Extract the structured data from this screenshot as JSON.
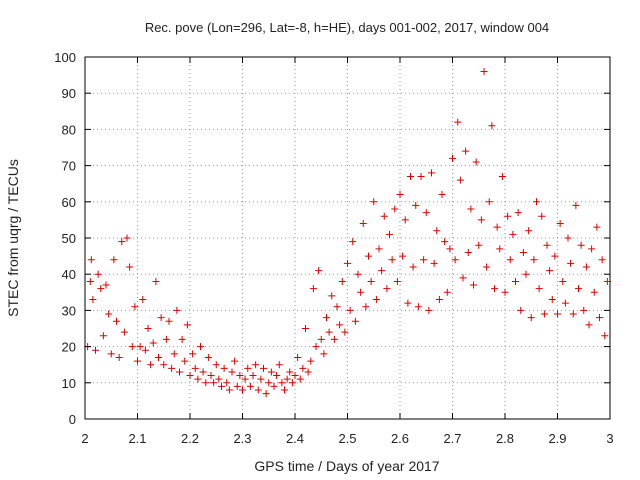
{
  "chart_data": {
    "type": "scatter",
    "title": "Rec. pove (Lon=296, Lat=-8, h=HE), days 001-002, 2017, window 004",
    "xlabel": "GPS time / Days of year 2017",
    "ylabel": "STEC from uqrg / TECUs",
    "xlim": [
      2,
      3
    ],
    "ylim": [
      0,
      100
    ],
    "xticks": [
      2,
      2.1,
      2.2,
      2.3,
      2.4,
      2.5,
      2.6,
      2.7,
      2.8,
      2.9,
      3
    ],
    "xtick_labels": [
      "2",
      "2.1",
      "2.2",
      "2.3",
      "2.4",
      "2.5",
      "2.6",
      "2.7",
      "2.8",
      "2.9",
      "3"
    ],
    "yticks": [
      0,
      10,
      20,
      30,
      40,
      50,
      60,
      70,
      80,
      90,
      100
    ],
    "ytick_labels": [
      "0",
      "10",
      "20",
      "30",
      "40",
      "50",
      "60",
      "70",
      "80",
      "90",
      "100"
    ],
    "grid": true,
    "marker": "+",
    "color": "#dd0000",
    "series": [
      {
        "name": "STEC",
        "points": [
          [
            2.005,
            20
          ],
          [
            2.01,
            38
          ],
          [
            2.012,
            44
          ],
          [
            2.015,
            33
          ],
          [
            2.02,
            19
          ],
          [
            2.025,
            40
          ],
          [
            2.03,
            36
          ],
          [
            2.035,
            23
          ],
          [
            2.04,
            37
          ],
          [
            2.045,
            29
          ],
          [
            2.05,
            18
          ],
          [
            2.055,
            44
          ],
          [
            2.06,
            27
          ],
          [
            2.065,
            17
          ],
          [
            2.07,
            49
          ],
          [
            2.075,
            24
          ],
          [
            2.08,
            50
          ],
          [
            2.085,
            42
          ],
          [
            2.09,
            20
          ],
          [
            2.095,
            31
          ],
          [
            2.1,
            16
          ],
          [
            2.105,
            20
          ],
          [
            2.11,
            33
          ],
          [
            2.115,
            19
          ],
          [
            2.12,
            25
          ],
          [
            2.125,
            15
          ],
          [
            2.13,
            21
          ],
          [
            2.135,
            38
          ],
          [
            2.14,
            17
          ],
          [
            2.145,
            28
          ],
          [
            2.15,
            15
          ],
          [
            2.155,
            22
          ],
          [
            2.16,
            27
          ],
          [
            2.165,
            14
          ],
          [
            2.17,
            18
          ],
          [
            2.175,
            30
          ],
          [
            2.18,
            13
          ],
          [
            2.185,
            22
          ],
          [
            2.19,
            16
          ],
          [
            2.195,
            26
          ],
          [
            2.2,
            12
          ],
          [
            2.205,
            18
          ],
          [
            2.21,
            14
          ],
          [
            2.215,
            11
          ],
          [
            2.22,
            20
          ],
          [
            2.225,
            13
          ],
          [
            2.23,
            10
          ],
          [
            2.235,
            17
          ],
          [
            2.24,
            12
          ],
          [
            2.245,
            10
          ],
          [
            2.25,
            15
          ],
          [
            2.255,
            11
          ],
          [
            2.26,
            9
          ],
          [
            2.265,
            14
          ],
          [
            2.27,
            10
          ],
          [
            2.275,
            8
          ],
          [
            2.28,
            13
          ],
          [
            2.285,
            16
          ],
          [
            2.29,
            9
          ],
          [
            2.295,
            12
          ],
          [
            2.3,
            8
          ],
          [
            2.305,
            11
          ],
          [
            2.31,
            14
          ],
          [
            2.315,
            9
          ],
          [
            2.32,
            12
          ],
          [
            2.325,
            15
          ],
          [
            2.33,
            8
          ],
          [
            2.335,
            11
          ],
          [
            2.34,
            14
          ],
          [
            2.345,
            7
          ],
          [
            2.35,
            10
          ],
          [
            2.355,
            13
          ],
          [
            2.36,
            9
          ],
          [
            2.365,
            12
          ],
          [
            2.37,
            15
          ],
          [
            2.375,
            10
          ],
          [
            2.38,
            8
          ],
          [
            2.385,
            11
          ],
          [
            2.39,
            13
          ],
          [
            2.395,
            10
          ],
          [
            2.4,
            12
          ],
          [
            2.405,
            17
          ],
          [
            2.41,
            11
          ],
          [
            2.415,
            14
          ],
          [
            2.42,
            25
          ],
          [
            2.425,
            13
          ],
          [
            2.43,
            16
          ],
          [
            2.435,
            36
          ],
          [
            2.44,
            20
          ],
          [
            2.445,
            41
          ],
          [
            2.45,
            22
          ],
          [
            2.455,
            18
          ],
          [
            2.46,
            28
          ],
          [
            2.465,
            24
          ],
          [
            2.47,
            34
          ],
          [
            2.475,
            22
          ],
          [
            2.48,
            31
          ],
          [
            2.485,
            26
          ],
          [
            2.49,
            38
          ],
          [
            2.495,
            24
          ],
          [
            2.5,
            43
          ],
          [
            2.505,
            30
          ],
          [
            2.51,
            49
          ],
          [
            2.515,
            27
          ],
          [
            2.52,
            40
          ],
          [
            2.525,
            35
          ],
          [
            2.53,
            54
          ],
          [
            2.535,
            31
          ],
          [
            2.54,
            45
          ],
          [
            2.545,
            38
          ],
          [
            2.55,
            60
          ],
          [
            2.555,
            33
          ],
          [
            2.56,
            47
          ],
          [
            2.565,
            41
          ],
          [
            2.57,
            56
          ],
          [
            2.575,
            36
          ],
          [
            2.58,
            51
          ],
          [
            2.585,
            44
          ],
          [
            2.59,
            58
          ],
          [
            2.595,
            38
          ],
          [
            2.6,
            62
          ],
          [
            2.605,
            45
          ],
          [
            2.61,
            55
          ],
          [
            2.615,
            32
          ],
          [
            2.62,
            67
          ],
          [
            2.625,
            42
          ],
          [
            2.63,
            59
          ],
          [
            2.635,
            31
          ],
          [
            2.64,
            67
          ],
          [
            2.645,
            44
          ],
          [
            2.65,
            57
          ],
          [
            2.655,
            30
          ],
          [
            2.66,
            68
          ],
          [
            2.665,
            43
          ],
          [
            2.67,
            52
          ],
          [
            2.675,
            33
          ],
          [
            2.68,
            62
          ],
          [
            2.685,
            49
          ],
          [
            2.69,
            35
          ],
          [
            2.695,
            47
          ],
          [
            2.7,
            72
          ],
          [
            2.705,
            44
          ],
          [
            2.71,
            82
          ],
          [
            2.715,
            66
          ],
          [
            2.72,
            39
          ],
          [
            2.725,
            74
          ],
          [
            2.73,
            46
          ],
          [
            2.735,
            58
          ],
          [
            2.74,
            37
          ],
          [
            2.745,
            71
          ],
          [
            2.75,
            48
          ],
          [
            2.755,
            55
          ],
          [
            2.76,
            96
          ],
          [
            2.765,
            42
          ],
          [
            2.77,
            60
          ],
          [
            2.775,
            81
          ],
          [
            2.78,
            36
          ],
          [
            2.785,
            53
          ],
          [
            2.79,
            47
          ],
          [
            2.795,
            67
          ],
          [
            2.8,
            35
          ],
          [
            2.805,
            56
          ],
          [
            2.81,
            44
          ],
          [
            2.815,
            51
          ],
          [
            2.82,
            38
          ],
          [
            2.825,
            57
          ],
          [
            2.83,
            30
          ],
          [
            2.835,
            46
          ],
          [
            2.84,
            40
          ],
          [
            2.845,
            52
          ],
          [
            2.85,
            28
          ],
          [
            2.855,
            44
          ],
          [
            2.86,
            60
          ],
          [
            2.865,
            36
          ],
          [
            2.87,
            56
          ],
          [
            2.875,
            29
          ],
          [
            2.88,
            48
          ],
          [
            2.885,
            41
          ],
          [
            2.89,
            33
          ],
          [
            2.895,
            45
          ],
          [
            2.9,
            29
          ],
          [
            2.905,
            54
          ],
          [
            2.91,
            38
          ],
          [
            2.915,
            32
          ],
          [
            2.92,
            50
          ],
          [
            2.925,
            43
          ],
          [
            2.93,
            29
          ],
          [
            2.935,
            59
          ],
          [
            2.94,
            36
          ],
          [
            2.945,
            48
          ],
          [
            2.95,
            30
          ],
          [
            2.955,
            42
          ],
          [
            2.96,
            26
          ],
          [
            2.965,
            47
          ],
          [
            2.97,
            35
          ],
          [
            2.975,
            53
          ],
          [
            2.98,
            28
          ],
          [
            2.985,
            44
          ],
          [
            2.99,
            23
          ],
          [
            2.995,
            38
          ]
        ]
      }
    ]
  }
}
